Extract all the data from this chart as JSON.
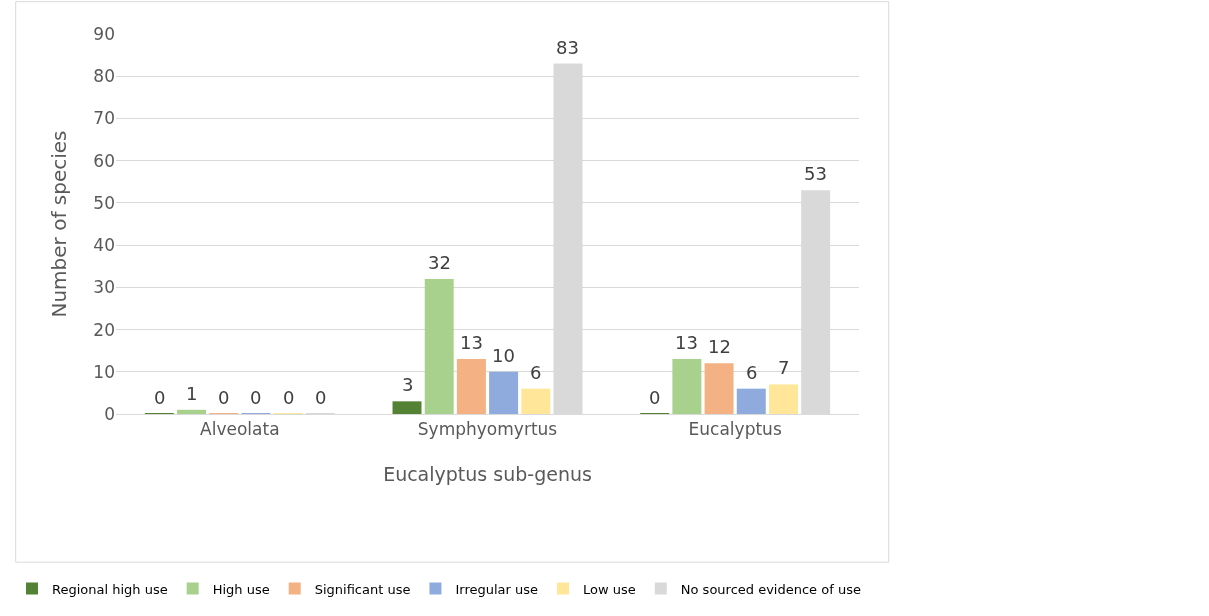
{
  "chart_data": {
    "type": "bar",
    "xlabel": "Eucalyptus sub-genus",
    "ylabel": "Number of species",
    "categories": [
      "Alveolata",
      "Symphyomyrtus",
      "Eucalyptus"
    ],
    "series": [
      {
        "name": "Regional high use",
        "color": "#548235",
        "values": [
          0,
          3,
          0
        ]
      },
      {
        "name": "High use",
        "color": "#a9d18e",
        "values": [
          1,
          32,
          13
        ]
      },
      {
        "name": "Significant use",
        "color": "#f4b183",
        "values": [
          0,
          13,
          12
        ]
      },
      {
        "name": "Irregular use",
        "color": "#8faadc",
        "values": [
          0,
          10,
          6
        ]
      },
      {
        "name": "Low use",
        "color": "#ffe699",
        "values": [
          0,
          6,
          7
        ]
      },
      {
        "name": "No sourced evidence of use",
        "color": "#d9d9d9",
        "values": [
          0,
          83,
          53
        ]
      }
    ],
    "ylim": [
      0,
      90
    ],
    "yticks": [
      0,
      10,
      20,
      30,
      40,
      50,
      60,
      70,
      80,
      90
    ],
    "grid": "y",
    "legend": "bottom",
    "data_labels": true
  }
}
